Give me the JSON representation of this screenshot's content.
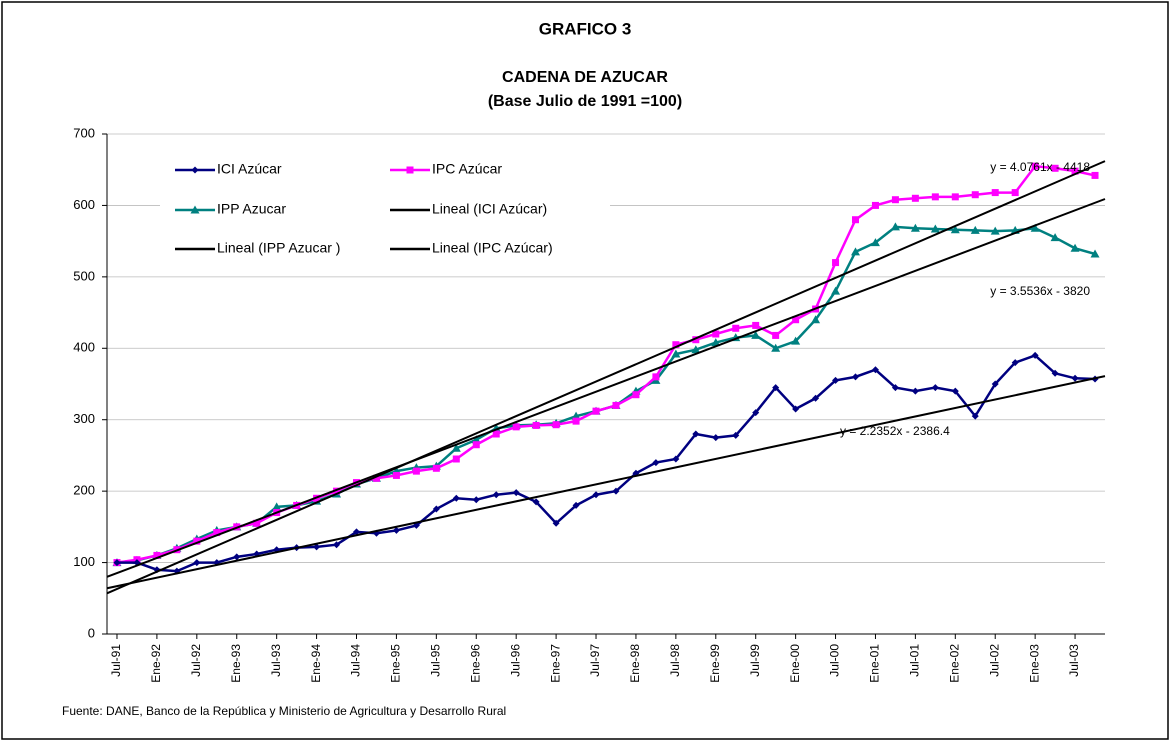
{
  "chart_data": {
    "type": "line",
    "heading": "GRAFICO 3",
    "title": "CADENA DE AZUCAR",
    "subtitle": "(Base Julio de 1991 =100)",
    "source": "Fuente: DANE, Banco de la República y Ministerio de Agricultura y Desarrollo Rural",
    "categories": [
      "Jul-91",
      null,
      "Ene-92",
      null,
      "Jul-92",
      null,
      "Ene-93",
      null,
      "Jul-93",
      null,
      "Ene-94",
      null,
      "Jul-94",
      null,
      "Ene-95",
      null,
      "Jul-95",
      null,
      "Ene-96",
      null,
      "Jul-96",
      null,
      "Ene-97",
      null,
      "Jul-97",
      null,
      "Ene-98",
      null,
      "Jul-98",
      null,
      "Ene-99",
      null,
      "Jul-99",
      null,
      "Ene-00",
      null,
      "Jul-00",
      null,
      "Ene-01",
      null,
      "Jul-01",
      null,
      "Ene-02",
      null,
      "Jul-02",
      null,
      "Ene-03",
      null,
      "Jul-03",
      null
    ],
    "series": [
      {
        "name": "ICI Azúcar",
        "color": "#000080",
        "marker": "diamond",
        "values": [
          100,
          100,
          90,
          88,
          100,
          100,
          108,
          112,
          118,
          121,
          122,
          125,
          143,
          141,
          145,
          152,
          175,
          190,
          188,
          195,
          198,
          185,
          155,
          180,
          195,
          200,
          225,
          240,
          245,
          280,
          275,
          278,
          310,
          345,
          315,
          330,
          355,
          360,
          370,
          345,
          340,
          345,
          340,
          305,
          350,
          380,
          390,
          365,
          358,
          357
        ]
      },
      {
        "name": "IPC Azúcar",
        "color": "#ff00ff",
        "marker": "square",
        "values": [
          100,
          104,
          110,
          118,
          130,
          142,
          150,
          155,
          170,
          180,
          190,
          200,
          212,
          218,
          222,
          228,
          232,
          245,
          265,
          280,
          290,
          292,
          293,
          298,
          312,
          320,
          335,
          360,
          405,
          412,
          420,
          428,
          432,
          418,
          440,
          455,
          520,
          580,
          600,
          608,
          610,
          612,
          612,
          615,
          618,
          618,
          655,
          652,
          648,
          642
        ]
      },
      {
        "name": "IPP Azucar",
        "color": "#008080",
        "marker": "triangle",
        "values": [
          100,
          103,
          110,
          120,
          133,
          145,
          150,
          155,
          178,
          180,
          186,
          196,
          210,
          218,
          228,
          233,
          235,
          260,
          272,
          288,
          292,
          293,
          295,
          305,
          312,
          320,
          340,
          355,
          392,
          398,
          408,
          415,
          418,
          400,
          410,
          440,
          480,
          535,
          548,
          570,
          568,
          567,
          566,
          565,
          564,
          565,
          568,
          555,
          540,
          532
        ]
      }
    ],
    "trendlines": [
      {
        "name": "Lineal (ICI Azúcar)",
        "color": "#000000",
        "start": 64,
        "end": 361,
        "label": "y = 2.2352x - 2386.4"
      },
      {
        "name": "Lineal (IPP Azucar )",
        "color": "#000000",
        "start": 80,
        "end": 609,
        "label": "y = 3.5536x - 3820"
      },
      {
        "name": "Lineal (IPC Azúcar)",
        "color": "#000000",
        "start": 57,
        "end": 662,
        "label": "y = 4.0761x - 4418"
      }
    ],
    "ylim": [
      0,
      700
    ],
    "yticks": [
      0,
      100,
      200,
      300,
      400,
      500,
      600,
      700
    ],
    "grid": true
  }
}
